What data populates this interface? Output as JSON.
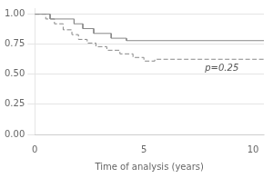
{
  "chart_data": {
    "type": "line",
    "xlabel": "Time of analysis (years)",
    "series": [
      {
        "color": "#888888",
        "line_style": "solid",
        "x": [
          0,
          0.7,
          0.7,
          1.8,
          1.8,
          2.2,
          2.2,
          2.7,
          2.7,
          3.5,
          3.5,
          4.2,
          4.2,
          10.5
        ],
        "values": [
          1.0,
          1.0,
          0.96,
          0.96,
          0.92,
          0.92,
          0.88,
          0.88,
          0.84,
          0.84,
          0.8,
          0.8,
          0.78,
          0.78
        ]
      },
      {
        "color": "#888888",
        "line_style": "dashed",
        "x": [
          0,
          0.5,
          0.5,
          0.9,
          0.9,
          1.3,
          1.3,
          1.7,
          1.7,
          2.0,
          2.0,
          2.4,
          2.4,
          2.8,
          2.8,
          3.3,
          3.3,
          3.9,
          3.9,
          4.5,
          4.5,
          5.0,
          5.0,
          5.5,
          5.5,
          6.2,
          6.2,
          10.5
        ],
        "values": [
          1.0,
          1.0,
          0.96,
          0.96,
          0.92,
          0.92,
          0.87,
          0.87,
          0.83,
          0.83,
          0.79,
          0.79,
          0.76,
          0.76,
          0.73,
          0.73,
          0.7,
          0.7,
          0.67,
          0.67,
          0.64,
          0.64,
          0.61,
          0.61,
          0.625,
          0.625,
          0.625,
          0.625
        ]
      }
    ],
    "annotations": [
      {
        "text": "p=0.25",
        "x": 7.8,
        "y": 0.545
      }
    ],
    "xlim": [
      0,
      10.5
    ],
    "ylim": [
      0.0,
      1.05
    ],
    "xticks": [
      0,
      5,
      10
    ],
    "yticks": [
      {
        "value": 0,
        "label": "0.00"
      },
      0.25,
      {
        "value": 0.5,
        "label": "0.50"
      },
      0.75,
      {
        "value": 1,
        "label": "1.00"
      }
    ],
    "grid": true
  }
}
